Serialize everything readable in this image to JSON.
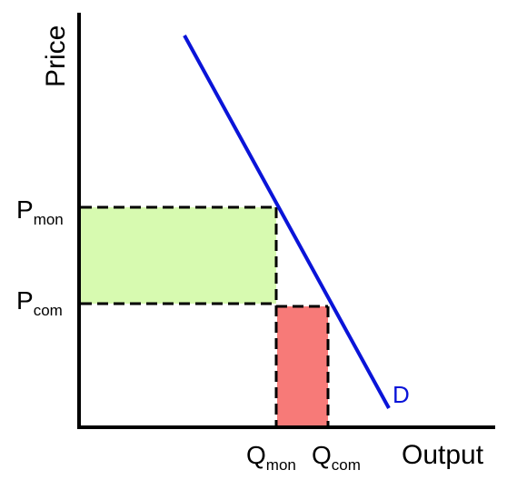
{
  "diagram": {
    "y_axis_label": "Price",
    "x_axis_label": "Output",
    "curve_label": "D",
    "p_mon": {
      "main": "P",
      "sub": "mon"
    },
    "p_com": {
      "main": "P",
      "sub": "com"
    },
    "q_mon": {
      "main": "Q",
      "sub": "mon"
    },
    "q_com": {
      "main": "Q",
      "sub": "com"
    }
  },
  "colors": {
    "axes": "#000000",
    "demand_curve": "#0a14d8",
    "demand_label": "#0a14d8",
    "green_area": "#d7fab0",
    "red_area": "#f77a78",
    "guide_lines": "#000000"
  }
}
